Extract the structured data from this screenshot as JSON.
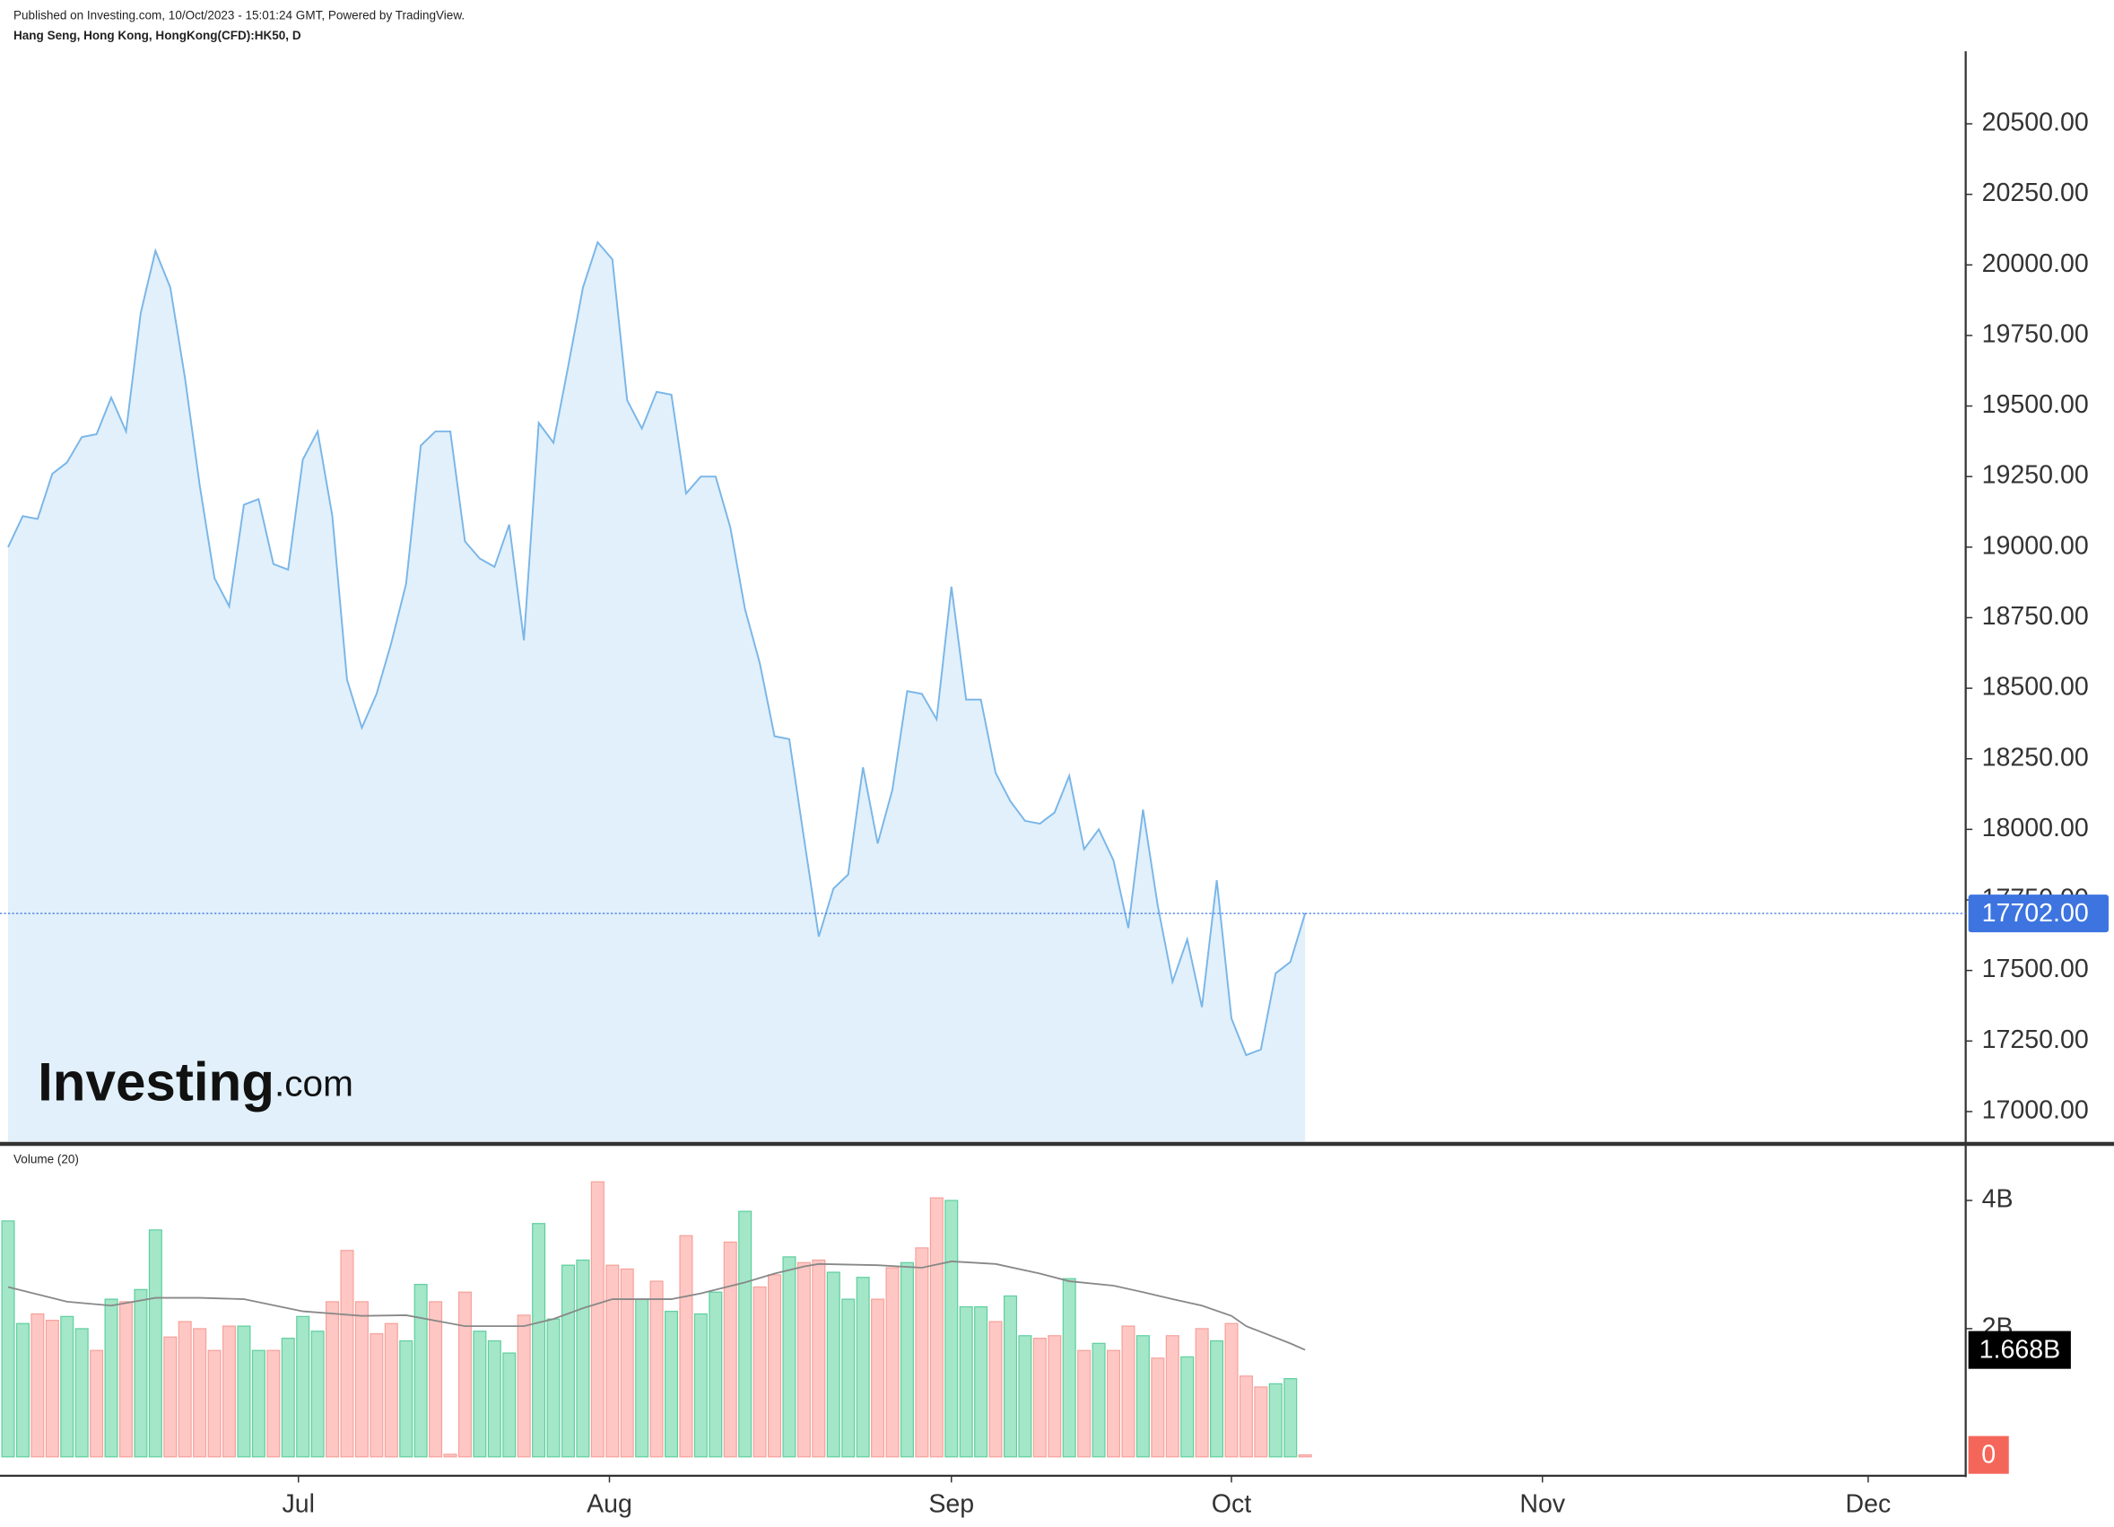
{
  "chart_data": [
    {
      "type": "area",
      "caption": "Published on Investing.com, 10/Oct/2023 - 15:01:24 GMT, Powered by TradingView.",
      "title": "Hang Seng, Hong Kong, HongKong(CFD):HK50, D",
      "watermark": {
        "name": "Investing",
        "suffix": ".com"
      },
      "color": "#7ab6e8",
      "fill": "#e1f0fa",
      "values": [
        19000,
        19110,
        19100,
        19260,
        19300,
        19390,
        19400,
        19530,
        19410,
        19830,
        20050,
        19920,
        19600,
        19220,
        18890,
        18790,
        19150,
        19170,
        18940,
        18920,
        19310,
        19410,
        19110,
        18530,
        18360,
        18480,
        18660,
        18870,
        19360,
        19410,
        19410,
        19020,
        18960,
        18930,
        19080,
        18670,
        19440,
        19370,
        19640,
        19920,
        20080,
        20020,
        19520,
        19420,
        19550,
        19540,
        19190,
        19250,
        19250,
        19070,
        18780,
        18590,
        18330,
        18320,
        17970,
        17620,
        17790,
        17840,
        18220,
        17950,
        18140,
        18490,
        18480,
        18390,
        18860,
        18460,
        18460,
        18200,
        18100,
        18030,
        18020,
        18060,
        18190,
        17930,
        18000,
        17890,
        17650,
        18070,
        17730,
        17460,
        17610,
        17370,
        17820,
        17330,
        17200,
        17220,
        17490,
        17530,
        17702
      ],
      "last_price_label": "17702.00",
      "last_price_color": "#3d74e0",
      "xlim": [
        0,
        133
      ],
      "ylim": [
        16895,
        20757
      ],
      "yticks": [
        {
          "value": 17000,
          "label": "17000.00"
        },
        {
          "value": 17250,
          "label": "17250.00"
        },
        {
          "value": 17500,
          "label": "17500.00"
        },
        {
          "value": 17750,
          "label": "17750.00"
        },
        {
          "value": 18000,
          "label": "18000.00"
        },
        {
          "value": 18250,
          "label": "18250.00"
        },
        {
          "value": 18500,
          "label": "18500.00"
        },
        {
          "value": 18750,
          "label": "18750.00"
        },
        {
          "value": 19000,
          "label": "19000.00"
        },
        {
          "value": 19250,
          "label": "19250.00"
        },
        {
          "value": 19500,
          "label": "19500.00"
        },
        {
          "value": 19750,
          "label": "19750.00"
        },
        {
          "value": 20000,
          "label": "20000.00"
        },
        {
          "value": 20250,
          "label": "20250.00"
        },
        {
          "value": 20500,
          "label": "20500.00"
        }
      ]
    },
    {
      "type": "bar",
      "title": "Volume (20)",
      "values": [
        3.68,
        2.08,
        2.23,
        2.13,
        2.19,
        2.0,
        1.66,
        2.46,
        2.42,
        2.61,
        3.54,
        1.87,
        2.11,
        2.0,
        1.66,
        2.04,
        2.04,
        1.66,
        1.66,
        1.85,
        2.19,
        1.96,
        2.42,
        3.22,
        2.42,
        1.92,
        2.08,
        1.81,
        2.69,
        2.42,
        0.04,
        2.57,
        1.96,
        1.81,
        1.62,
        2.21,
        3.64,
        2.15,
        2.99,
        3.07,
        4.29,
        2.99,
        2.93,
        2.46,
        2.74,
        2.27,
        3.45,
        2.23,
        2.57,
        3.35,
        3.83,
        2.65,
        2.84,
        3.12,
        3.03,
        3.07,
        2.88,
        2.46,
        2.8,
        2.46,
        2.95,
        3.03,
        3.26,
        4.04,
        4.0,
        2.34,
        2.34,
        2.11,
        2.51,
        1.89,
        1.85,
        1.89,
        2.78,
        1.66,
        1.77,
        1.66,
        2.04,
        1.89,
        1.54,
        1.89,
        1.56,
        2.0,
        1.81,
        2.08,
        1.26,
        1.09,
        1.14,
        1.22,
        0.03
      ],
      "direction": [
        "up",
        "up",
        "down",
        "down",
        "up",
        "up",
        "down",
        "up",
        "down",
        "up",
        "up",
        "down",
        "down",
        "down",
        "down",
        "down",
        "up",
        "up",
        "down",
        "up",
        "up",
        "up",
        "down",
        "down",
        "down",
        "down",
        "down",
        "up",
        "up",
        "down",
        "down",
        "down",
        "up",
        "up",
        "up",
        "down",
        "up",
        "up",
        "up",
        "up",
        "down",
        "down",
        "down",
        "up",
        "down",
        "up",
        "down",
        "up",
        "up",
        "down",
        "up",
        "down",
        "down",
        "up",
        "down",
        "down",
        "up",
        "up",
        "up",
        "down",
        "down",
        "up",
        "down",
        "down",
        "up",
        "up",
        "up",
        "down",
        "up",
        "up",
        "down",
        "down",
        "up",
        "down",
        "up",
        "down",
        "down",
        "up",
        "down",
        "down",
        "up",
        "down",
        "up",
        "down",
        "down",
        "down",
        "up",
        "up",
        "down"
      ],
      "palette": {
        "up": {
          "fill": "#a3e6c8",
          "stroke": "#5fcf9f"
        },
        "down": {
          "fill": "#ffc7c3",
          "stroke": "#f5a19b"
        }
      },
      "last_value_label": "0",
      "last_value_color": "#f5665a",
      "ma": {
        "color": "#888888",
        "x": [
          0,
          4,
          7,
          10,
          13,
          16,
          20,
          24,
          27,
          31,
          35,
          37,
          39,
          41,
          45,
          47,
          50,
          52,
          54,
          55,
          59,
          62,
          64,
          67,
          70,
          72,
          75,
          77,
          79,
          81,
          83,
          84,
          87,
          88
        ],
        "values": [
          2.65,
          2.42,
          2.36,
          2.48,
          2.48,
          2.46,
          2.27,
          2.2,
          2.21,
          2.04,
          2.04,
          2.15,
          2.32,
          2.46,
          2.46,
          2.55,
          2.72,
          2.86,
          2.97,
          3.01,
          2.99,
          2.95,
          3.05,
          3.01,
          2.86,
          2.74,
          2.67,
          2.57,
          2.46,
          2.36,
          2.2,
          2.04,
          1.77,
          1.668
        ],
        "value_label": "1.668B"
      },
      "xlim": [
        0,
        133
      ],
      "xticks": [
        {
          "value": 19.7,
          "label": "Jul"
        },
        {
          "value": 40.8,
          "label": "Aug"
        },
        {
          "value": 64.0,
          "label": "Sep"
        },
        {
          "value": 83.0,
          "label": "Oct"
        },
        {
          "value": 104.1,
          "label": "Nov"
        },
        {
          "value": 126.2,
          "label": "Dec"
        }
      ],
      "ylim": [
        0,
        4.84
      ],
      "yticks": [
        {
          "value": 2,
          "label": "2B"
        },
        {
          "value": 4,
          "label": "4B"
        }
      ]
    }
  ]
}
